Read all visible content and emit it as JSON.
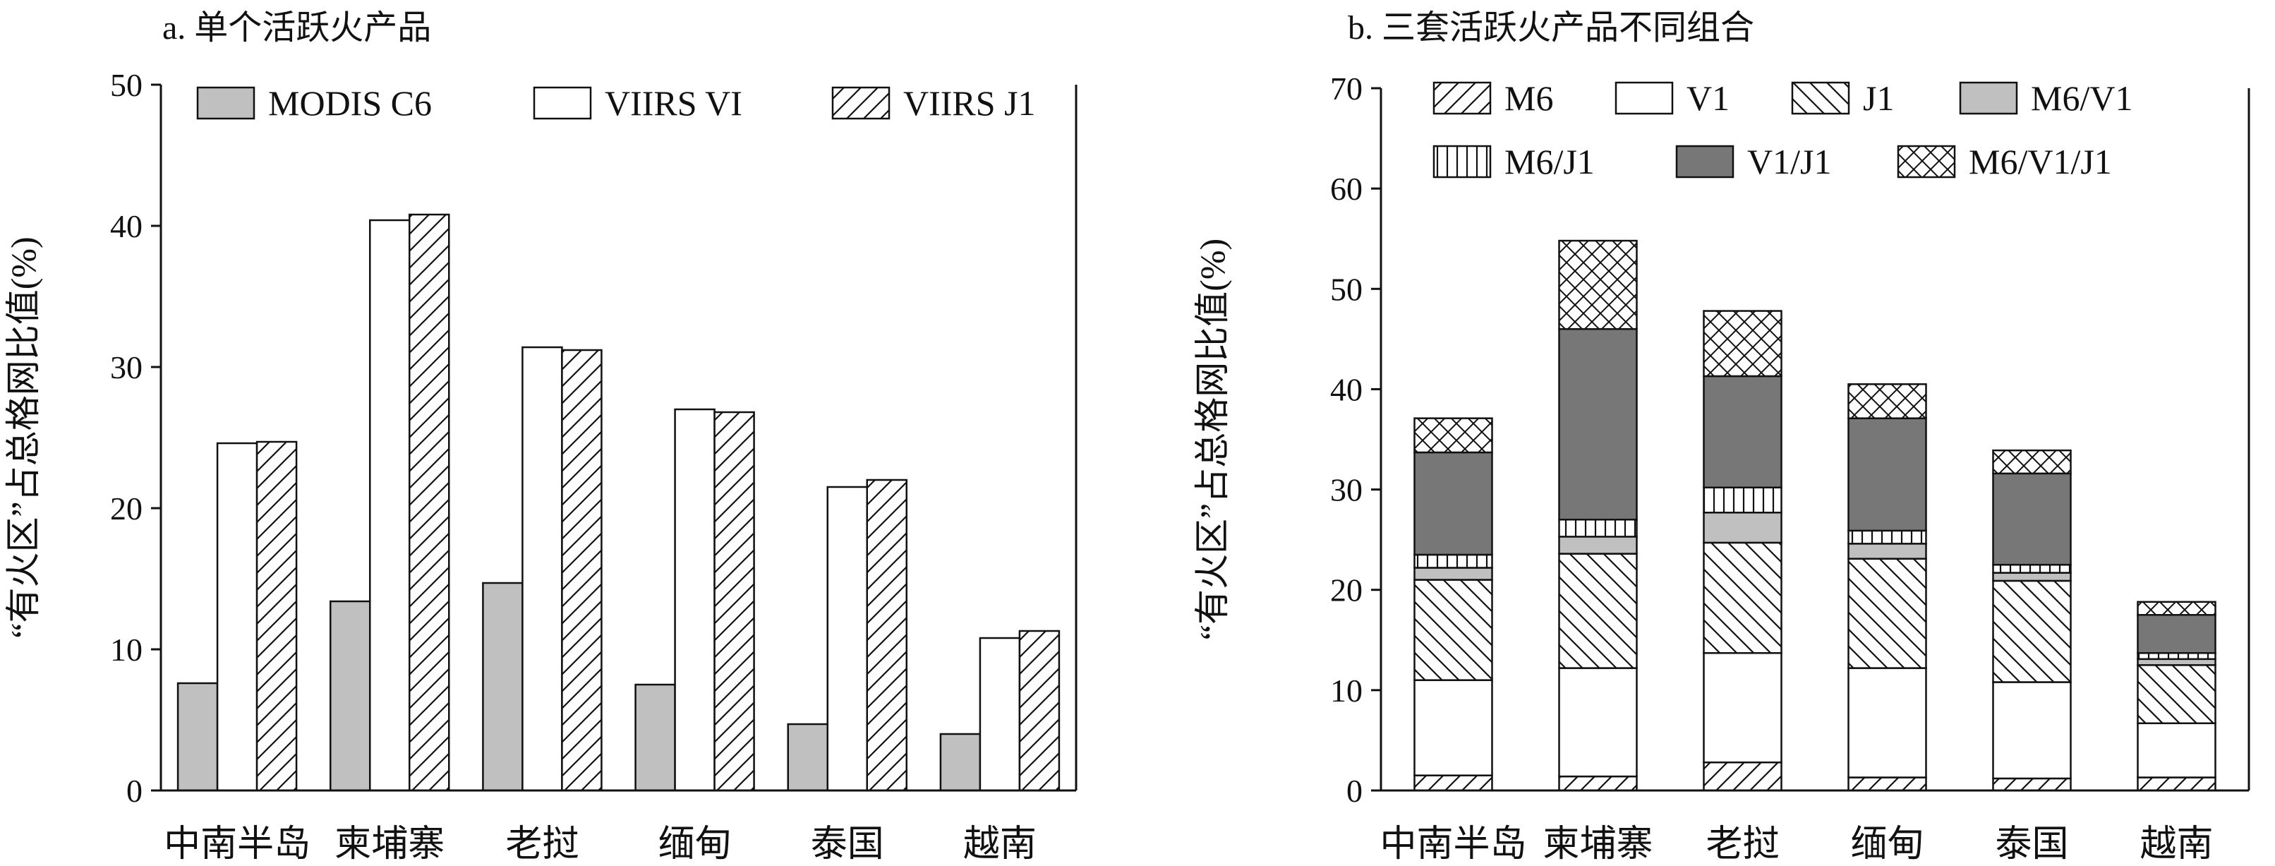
{
  "figure": {
    "panels": [
      {
        "title": "a. 单个活跃火产品"
      },
      {
        "title": "b. 三套活跃火产品不同组合"
      }
    ]
  },
  "chart_data": [
    {
      "type": "bar",
      "title": "a. 单个活跃火产品",
      "xlabel": "",
      "ylabel": "“有火区”占总格网比值(%)",
      "ylim": [
        0,
        50
      ],
      "yticks": [
        0,
        10,
        20,
        30,
        40,
        50
      ],
      "categories": [
        "中南半岛",
        "柬埔寨",
        "老挝",
        "缅甸",
        "泰国",
        "越南"
      ],
      "legend_position": "top",
      "series": [
        {
          "name": "MODIS C6",
          "pattern": "solid-gray",
          "color": "#c0c0c0",
          "values": [
            7.6,
            13.4,
            14.7,
            7.5,
            4.7,
            4.0
          ]
        },
        {
          "name": "VIIRS VI",
          "pattern": "white",
          "color": "#ffffff",
          "values": [
            24.6,
            40.4,
            31.4,
            27.0,
            21.5,
            10.8
          ]
        },
        {
          "name": "VIIRS J1",
          "pattern": "hatch-forward",
          "color": "#ffffff",
          "values": [
            24.7,
            40.8,
            31.2,
            26.8,
            22.0,
            11.3
          ]
        }
      ]
    },
    {
      "type": "bar",
      "stacked": true,
      "title": "b. 三套活跃火产品不同组合",
      "xlabel": "",
      "ylabel": "“有火区”占总格网比值(%)",
      "ylim": [
        0,
        70
      ],
      "yticks": [
        0,
        10,
        20,
        30,
        40,
        50,
        60,
        70
      ],
      "categories": [
        "中南半岛",
        "柬埔寨",
        "老挝",
        "缅甸",
        "泰国",
        "越南"
      ],
      "legend_position": "top",
      "series": [
        {
          "name": "M6",
          "pattern": "hatch-forward",
          "color": "#ffffff",
          "values": [
            1.5,
            1.4,
            2.8,
            1.3,
            1.2,
            1.3
          ]
        },
        {
          "name": "V1",
          "pattern": "white",
          "color": "#ffffff",
          "values": [
            9.5,
            10.8,
            10.9,
            10.9,
            9.6,
            5.4
          ]
        },
        {
          "name": "J1",
          "pattern": "hatch-back",
          "color": "#ffffff",
          "values": [
            10.0,
            11.4,
            11.0,
            10.9,
            10.1,
            5.8
          ]
        },
        {
          "name": "M6/V1",
          "pattern": "solid-gray",
          "color": "#c0c0c0",
          "values": [
            1.2,
            1.7,
            3.0,
            1.5,
            0.8,
            0.6
          ]
        },
        {
          "name": "M6/J1",
          "pattern": "vertical-lines",
          "color": "#ffffff",
          "values": [
            1.3,
            1.7,
            2.5,
            1.3,
            0.8,
            0.6
          ]
        },
        {
          "name": "V1/J1",
          "pattern": "solid-dark",
          "color": "#777777",
          "values": [
            10.2,
            19.0,
            11.1,
            11.2,
            9.1,
            3.8
          ]
        },
        {
          "name": "M6/V1/J1",
          "pattern": "crosshatch",
          "color": "#ffffff",
          "values": [
            3.4,
            8.8,
            6.5,
            3.4,
            2.3,
            1.3
          ]
        }
      ]
    }
  ]
}
